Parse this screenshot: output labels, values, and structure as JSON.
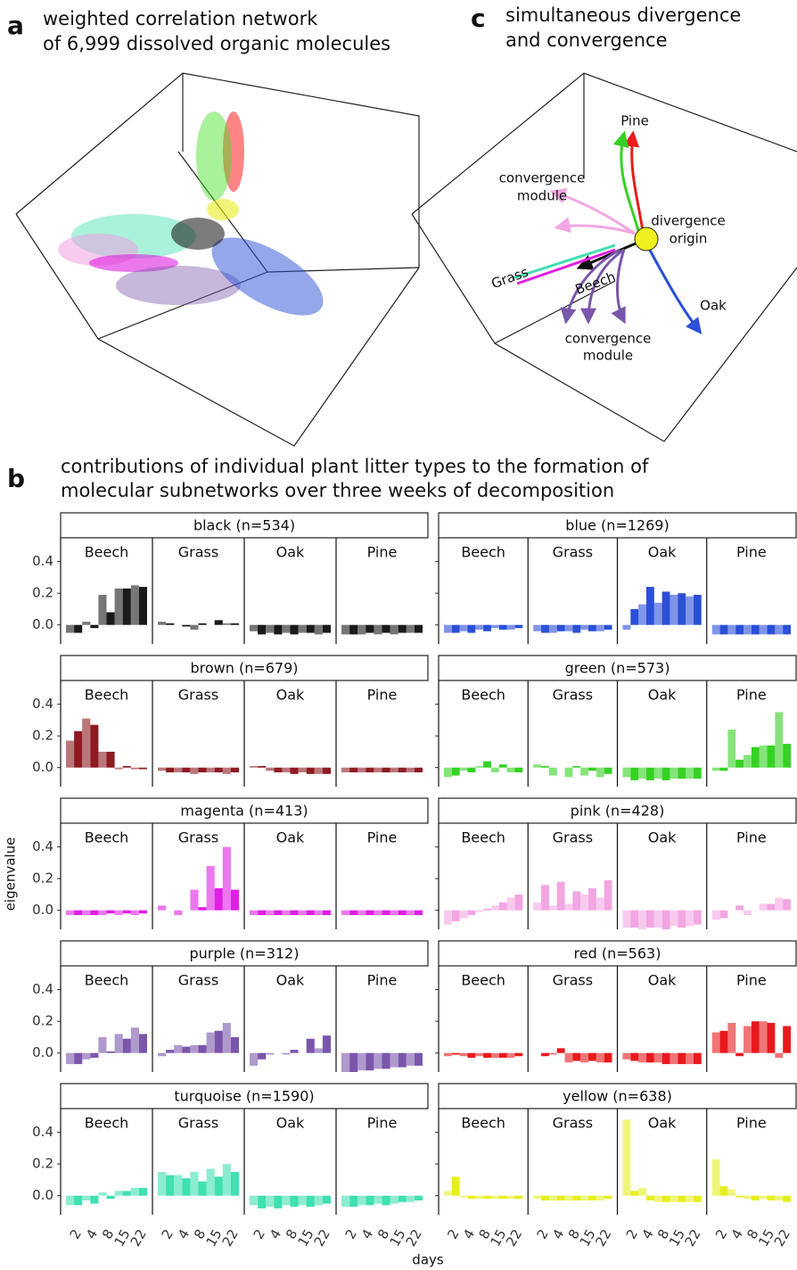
{
  "panel_a": {
    "letter": "a",
    "title_lines": [
      "weighted correlation network",
      "of 6,999 dissolved organic molecules"
    ]
  },
  "panel_c": {
    "letter": "c",
    "title_lines": [
      "simultaneous divergence",
      "and convergence"
    ],
    "labels": {
      "pine": "Pine",
      "conv_top_1": "convergence",
      "conv_top_2": "module",
      "div_1": "divergence",
      "div_2": "origin",
      "grass": "Grass",
      "beech": "Beech",
      "oak": "Oak",
      "conv_bot_1": "convergence",
      "conv_bot_2": "module"
    }
  },
  "chart_data": {
    "type": "bar",
    "letter": "b",
    "title_lines": [
      "contributions of individual plant litter types to the formation of",
      "molecular subnetworks over three weeks of decomposition"
    ],
    "ylabel": "eigenvalue",
    "xlabel": "days",
    "categories": [
      null,
      "2",
      null,
      "4",
      null,
      "8",
      null,
      "15",
      null,
      "22"
    ],
    "ylim": [
      -0.12,
      0.55
    ],
    "yticks": [
      {
        "value": 0,
        "label": "0.0"
      },
      0.2,
      0.4
    ],
    "facets": [
      {
        "title": "black (n=534)",
        "color": "#1a1a1a",
        "series": [
          {
            "name": "Beech",
            "values": [
              -0.05,
              -0.05,
              0.02,
              -0.02,
              0.19,
              0.08,
              0.23,
              0.23,
              0.25,
              0.24
            ]
          },
          {
            "name": "Grass",
            "values": [
              0.02,
              0.01,
              0.0,
              -0.01,
              -0.03,
              0.01,
              0.0,
              0.03,
              0.01,
              0.01
            ]
          },
          {
            "name": "Oak",
            "values": [
              -0.04,
              -0.06,
              -0.05,
              -0.06,
              -0.05,
              -0.06,
              -0.05,
              -0.05,
              -0.06,
              -0.05
            ]
          },
          {
            "name": "Pine",
            "values": [
              -0.06,
              -0.06,
              -0.06,
              -0.05,
              -0.06,
              -0.05,
              -0.06,
              -0.05,
              -0.05,
              -0.05
            ]
          }
        ]
      },
      {
        "title": "blue (n=1269)",
        "color": "#2b4fd8",
        "series": [
          {
            "name": "Beech",
            "values": [
              -0.05,
              -0.05,
              -0.04,
              -0.05,
              -0.03,
              -0.04,
              -0.02,
              -0.03,
              -0.03,
              -0.02
            ]
          },
          {
            "name": "Grass",
            "values": [
              -0.04,
              -0.05,
              -0.05,
              -0.04,
              -0.04,
              -0.05,
              -0.03,
              -0.04,
              -0.04,
              -0.03
            ]
          },
          {
            "name": "Oak",
            "values": [
              -0.03,
              0.1,
              0.13,
              0.24,
              0.14,
              0.21,
              0.19,
              0.2,
              0.18,
              0.19
            ]
          },
          {
            "name": "Pine",
            "values": [
              -0.06,
              -0.06,
              -0.06,
              -0.06,
              -0.06,
              -0.06,
              -0.06,
              -0.06,
              -0.06,
              -0.06
            ]
          }
        ]
      },
      {
        "title": "brown (n=679)",
        "color": "#8e1b22",
        "series": [
          {
            "name": "Beech",
            "values": [
              0.17,
              0.23,
              0.31,
              0.27,
              0.1,
              0.1,
              -0.01,
              0.01,
              -0.01,
              -0.01
            ]
          },
          {
            "name": "Grass",
            "values": [
              -0.02,
              -0.03,
              -0.03,
              -0.03,
              -0.04,
              -0.03,
              -0.03,
              -0.03,
              -0.04,
              -0.03
            ]
          },
          {
            "name": "Oak",
            "values": [
              0.01,
              0.01,
              -0.02,
              -0.03,
              -0.03,
              -0.04,
              -0.03,
              -0.04,
              -0.04,
              -0.04
            ]
          },
          {
            "name": "Pine",
            "values": [
              -0.03,
              -0.03,
              -0.03,
              -0.03,
              -0.03,
              -0.03,
              -0.03,
              -0.03,
              -0.03,
              -0.03
            ]
          }
        ]
      },
      {
        "title": "green (n=573)",
        "color": "#35d123",
        "series": [
          {
            "name": "Beech",
            "values": [
              -0.06,
              -0.05,
              -0.02,
              -0.03,
              0.01,
              0.04,
              -0.03,
              0.02,
              -0.03,
              -0.03
            ]
          },
          {
            "name": "Grass",
            "values": [
              0.02,
              0.01,
              -0.05,
              0.0,
              -0.06,
              0.01,
              -0.05,
              -0.02,
              -0.06,
              -0.04
            ]
          },
          {
            "name": "Oak",
            "values": [
              -0.06,
              -0.08,
              -0.07,
              -0.08,
              -0.07,
              -0.08,
              -0.07,
              -0.07,
              -0.07,
              -0.07
            ]
          },
          {
            "name": "Pine",
            "values": [
              -0.02,
              -0.02,
              0.24,
              0.05,
              0.08,
              0.13,
              0.14,
              0.14,
              0.35,
              0.15
            ]
          }
        ]
      },
      {
        "title": "magenta (n=413)",
        "color": "#e01ee6",
        "series": [
          {
            "name": "Beech",
            "values": [
              -0.03,
              -0.03,
              -0.03,
              -0.03,
              -0.03,
              -0.02,
              -0.03,
              -0.02,
              -0.03,
              -0.02
            ]
          },
          {
            "name": "Grass",
            "values": [
              0.03,
              0.0,
              -0.03,
              0.0,
              0.13,
              0.02,
              0.28,
              0.14,
              0.4,
              0.13
            ]
          },
          {
            "name": "Oak",
            "values": [
              -0.03,
              -0.03,
              -0.03,
              -0.03,
              -0.03,
              -0.03,
              -0.03,
              -0.03,
              -0.03,
              -0.03
            ]
          },
          {
            "name": "Pine",
            "values": [
              -0.03,
              -0.03,
              -0.03,
              -0.03,
              -0.03,
              -0.03,
              -0.03,
              -0.03,
              -0.03,
              -0.03
            ]
          }
        ]
      },
      {
        "title": "pink (n=428)",
        "color": "#f2a6e2",
        "series": [
          {
            "name": "Beech",
            "values": [
              -0.09,
              -0.07,
              -0.05,
              -0.03,
              -0.01,
              0.01,
              0.03,
              0.05,
              0.08,
              0.1
            ]
          },
          {
            "name": "Grass",
            "values": [
              0.05,
              0.16,
              0.03,
              0.18,
              0.04,
              0.12,
              0.1,
              0.14,
              0.08,
              0.19
            ]
          },
          {
            "name": "Oak",
            "values": [
              -0.11,
              -0.11,
              -0.12,
              -0.11,
              -0.11,
              -0.12,
              -0.1,
              -0.11,
              -0.1,
              -0.09
            ]
          },
          {
            "name": "Pine",
            "values": [
              -0.06,
              -0.05,
              0.0,
              0.03,
              -0.03,
              0.0,
              0.04,
              0.04,
              0.08,
              0.07
            ]
          }
        ]
      },
      {
        "title": "purple (n=312)",
        "color": "#7a56ab",
        "series": [
          {
            "name": "Beech",
            "values": [
              -0.07,
              -0.07,
              -0.04,
              -0.03,
              0.1,
              0.01,
              0.12,
              0.09,
              0.16,
              0.12
            ]
          },
          {
            "name": "Grass",
            "values": [
              -0.02,
              0.02,
              0.05,
              0.04,
              0.05,
              0.05,
              0.13,
              0.14,
              0.19,
              0.1
            ]
          },
          {
            "name": "Oak",
            "values": [
              -0.08,
              -0.04,
              -0.01,
              0.0,
              -0.01,
              0.02,
              0.0,
              0.09,
              0.03,
              0.11
            ]
          },
          {
            "name": "Pine",
            "values": [
              -0.12,
              -0.12,
              -0.11,
              -0.11,
              -0.1,
              -0.1,
              -0.09,
              -0.09,
              -0.08,
              -0.08
            ]
          }
        ]
      },
      {
        "title": "red (n=563)",
        "color": "#e8191c",
        "series": [
          {
            "name": "Beech",
            "values": [
              -0.02,
              -0.01,
              -0.02,
              -0.03,
              -0.02,
              -0.03,
              -0.03,
              -0.03,
              -0.03,
              -0.02
            ]
          },
          {
            "name": "Grass",
            "values": [
              0.0,
              -0.02,
              -0.01,
              0.03,
              -0.06,
              -0.05,
              -0.06,
              -0.05,
              -0.06,
              -0.06
            ]
          },
          {
            "name": "Oak",
            "values": [
              -0.04,
              -0.05,
              -0.06,
              -0.06,
              -0.06,
              -0.07,
              -0.07,
              -0.07,
              -0.07,
              -0.07
            ]
          },
          {
            "name": "Pine",
            "values": [
              0.13,
              0.14,
              0.19,
              -0.02,
              0.17,
              0.2,
              0.2,
              0.19,
              -0.03,
              0.17
            ]
          }
        ]
      },
      {
        "title": "turquoise (n=1590)",
        "color": "#3fe0b2",
        "series": [
          {
            "name": "Beech",
            "values": [
              -0.06,
              -0.06,
              -0.03,
              -0.05,
              0.02,
              -0.02,
              0.03,
              0.03,
              0.05,
              0.05
            ]
          },
          {
            "name": "Grass",
            "values": [
              0.15,
              0.13,
              0.13,
              0.11,
              0.15,
              0.09,
              0.17,
              0.12,
              0.2,
              0.15
            ]
          },
          {
            "name": "Oak",
            "values": [
              -0.06,
              -0.08,
              -0.07,
              -0.08,
              -0.06,
              -0.07,
              -0.06,
              -0.07,
              -0.06,
              -0.05
            ]
          },
          {
            "name": "Pine",
            "values": [
              -0.07,
              -0.07,
              -0.06,
              -0.06,
              -0.05,
              -0.06,
              -0.05,
              -0.04,
              -0.04,
              -0.03
            ]
          }
        ]
      },
      {
        "title": "yellow (n=638)",
        "color": "#e6ee1e",
        "series": [
          {
            "name": "Beech",
            "values": [
              0.03,
              0.12,
              -0.01,
              -0.02,
              -0.02,
              -0.02,
              -0.02,
              -0.02,
              -0.02,
              -0.02
            ]
          },
          {
            "name": "Grass",
            "values": [
              -0.02,
              -0.03,
              -0.03,
              -0.03,
              -0.03,
              -0.03,
              -0.03,
              -0.03,
              -0.03,
              -0.02
            ]
          },
          {
            "name": "Oak",
            "values": [
              0.48,
              0.03,
              0.05,
              -0.03,
              -0.04,
              -0.04,
              -0.04,
              -0.04,
              -0.04,
              -0.04
            ]
          },
          {
            "name": "Pine",
            "values": [
              0.23,
              0.06,
              0.04,
              -0.01,
              -0.02,
              -0.03,
              -0.02,
              -0.03,
              -0.03,
              -0.04
            ]
          }
        ]
      }
    ]
  }
}
